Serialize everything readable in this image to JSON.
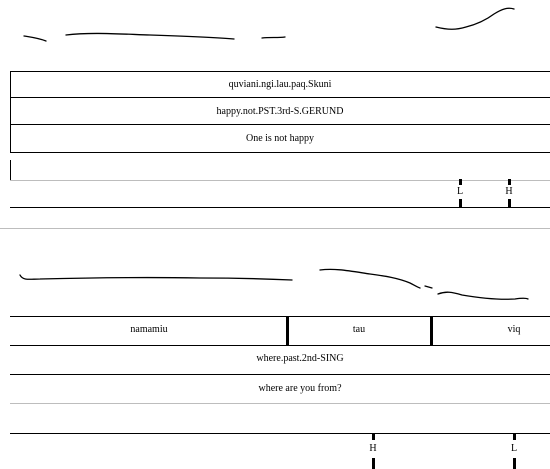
{
  "section1": {
    "transcription": "quviani.ngi.lau.paq.Skuni",
    "gloss": "happy.not.PST.3rd-S.GERUND",
    "translation": "One is not happy",
    "tones": [
      "L",
      "H"
    ]
  },
  "section2": {
    "words": [
      "namamiu",
      "tau",
      "viq"
    ],
    "gloss": "where.past.2nd-SING",
    "translation": "where are you from?",
    "tones": [
      "H",
      "L"
    ]
  }
}
